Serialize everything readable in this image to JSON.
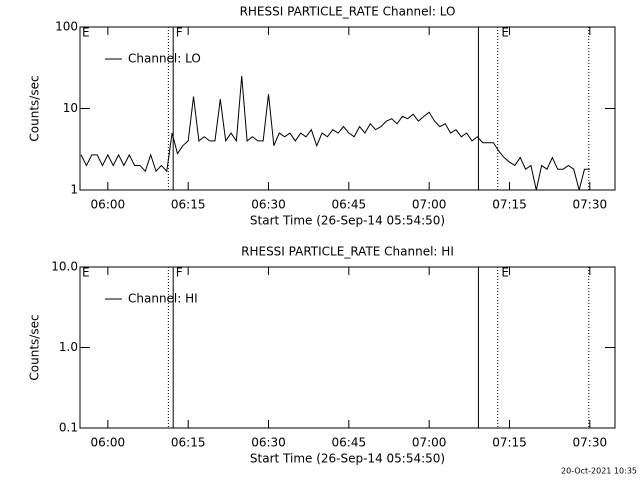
{
  "chart_data": [
    {
      "type": "line",
      "title": "RHESSI PARTICLE_RATE Channel: LO",
      "x_label": "Start Time (26-Sep-14 05:54:50)",
      "y_label": "Counts/sec",
      "log_y": true,
      "legend": "upper left",
      "xlim": [
        354.8,
        454.7
      ],
      "xticks": [
        {
          "value": 360,
          "label": "06:00"
        },
        {
          "value": 375,
          "label": "06:15"
        },
        {
          "value": 390,
          "label": "06:30"
        },
        {
          "value": 405,
          "label": "06:45"
        },
        {
          "value": 420,
          "label": "07:00"
        },
        {
          "value": 435,
          "label": "07:15"
        },
        {
          "value": 450,
          "label": "07:30"
        }
      ],
      "ylim": [
        1,
        100
      ],
      "yticks": [
        1,
        10,
        100
      ],
      "vlines": [
        {
          "x": 371.3,
          "style": "dotted"
        },
        {
          "x": 372.2,
          "style": "solid"
        },
        {
          "x": 429.2,
          "style": "solid"
        },
        {
          "x": 432.8,
          "style": "dotted"
        },
        {
          "x": 449.8,
          "style": "dotted"
        }
      ],
      "flags": [
        {
          "text": "E",
          "x": 354.8
        },
        {
          "text": "F",
          "x": 372.3
        },
        {
          "text": "E",
          "x": 433.1
        }
      ],
      "x": [
        355,
        356,
        357,
        358,
        359,
        360,
        361,
        362,
        363,
        364,
        365,
        366,
        367,
        368,
        369,
        370,
        371,
        372,
        373,
        374,
        375,
        376,
        377,
        378,
        379,
        380,
        381,
        382,
        383,
        384,
        385,
        386,
        387,
        388,
        389,
        390,
        391,
        392,
        393,
        394,
        395,
        396,
        397,
        398,
        399,
        400,
        401,
        402,
        403,
        404,
        405,
        406,
        407,
        408,
        409,
        410,
        411,
        412,
        413,
        414,
        415,
        416,
        417,
        418,
        419,
        420,
        421,
        422,
        423,
        424,
        425,
        426,
        427,
        428,
        429,
        430,
        431,
        432,
        433,
        434,
        435,
        436,
        437,
        438,
        439,
        440,
        441,
        442,
        443,
        444,
        445,
        446,
        447,
        448,
        449,
        450
      ],
      "series": [
        {
          "name": "Channel: LO",
          "color": "#000000",
          "values": [
            2.7,
            2,
            2.7,
            2.7,
            2,
            2.7,
            2,
            2.7,
            2,
            2.7,
            2,
            2,
            1.7,
            2.7,
            1.7,
            2,
            1.7,
            5,
            2.8,
            3.5,
            4,
            14,
            4,
            4.5,
            4,
            4,
            13,
            4,
            5,
            4,
            25,
            4,
            4.5,
            4,
            4,
            15,
            3.5,
            5,
            4.5,
            5,
            4,
            5,
            4.5,
            5.5,
            3.5,
            5,
            4.5,
            5.5,
            5,
            6,
            5,
            4.5,
            6,
            5,
            6.5,
            5.5,
            6,
            7,
            7.5,
            6.5,
            8,
            7.5,
            8.5,
            7,
            8,
            9,
            7,
            6,
            6.5,
            5,
            5.5,
            4.5,
            5,
            4,
            4.5,
            3.8,
            3.8,
            3.8,
            3,
            2.5,
            2.2,
            2,
            2.5,
            1.8,
            2,
            1,
            2,
            1.8,
            2.5,
            1.8,
            1.8,
            2,
            1.8,
            1,
            1.8,
            1.8
          ]
        }
      ]
    },
    {
      "type": "line",
      "title": "RHESSI PARTICLE_RATE Channel: HI",
      "x_label": "Start Time (26-Sep-14 05:54:50)",
      "y_label": "Counts/sec",
      "log_y": true,
      "legend": "upper left",
      "xlim": [
        354.8,
        454.7
      ],
      "xticks": [
        {
          "value": 360,
          "label": "06:00"
        },
        {
          "value": 375,
          "label": "06:15"
        },
        {
          "value": 390,
          "label": "06:30"
        },
        {
          "value": 405,
          "label": "06:45"
        },
        {
          "value": 420,
          "label": "07:00"
        },
        {
          "value": 435,
          "label": "07:15"
        },
        {
          "value": 450,
          "label": "07:30"
        }
      ],
      "ylim": [
        0.1,
        10
      ],
      "yticks": [
        0.1,
        {
          "value": 1,
          "label": "1.0"
        },
        {
          "value": 10,
          "label": "10.0"
        }
      ],
      "vlines": [
        {
          "x": 371.3,
          "style": "dotted"
        },
        {
          "x": 372.2,
          "style": "solid"
        },
        {
          "x": 429.2,
          "style": "solid"
        },
        {
          "x": 432.8,
          "style": "dotted"
        },
        {
          "x": 449.8,
          "style": "dotted"
        }
      ],
      "flags": [
        {
          "text": "E",
          "x": 354.8
        },
        {
          "text": "F",
          "x": 372.3
        },
        {
          "text": "E",
          "x": 433.1
        }
      ],
      "x": [],
      "series": [
        {
          "name": "Channel: HI",
          "color": "#000000",
          "values": []
        }
      ]
    }
  ],
  "footer": "20-Oct-2021 10:35"
}
